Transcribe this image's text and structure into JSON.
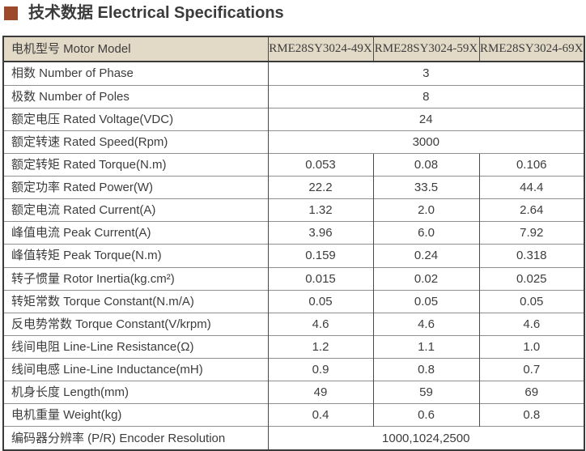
{
  "title": {
    "text": "技术数据 Electrical Specifications"
  },
  "colors": {
    "accent_square": "#9c4a2b",
    "header_bg": "#e3d9c7",
    "text": "#3d3d3d",
    "row_line": "#8f8f8f",
    "column_line": "#4a4a4a",
    "outer_border": "#3a3a3a"
  },
  "table": {
    "header": {
      "label": "电机型号 Motor Model",
      "models": [
        "RME28SY3024-49X",
        "RME28SY3024-59X",
        "RME28SY3024-69X"
      ]
    },
    "rows": [
      {
        "label": "相数 Number of Phase",
        "merged": true,
        "value": "3"
      },
      {
        "label": "极数 Number of Poles",
        "merged": true,
        "value": "8"
      },
      {
        "label": "额定电压 Rated Voltage(VDC)",
        "merged": true,
        "value": "24"
      },
      {
        "label": "额定转速 Rated Speed(Rpm)",
        "merged": true,
        "value": "3000"
      },
      {
        "label": "额定转矩 Rated Torque(N.m)",
        "merged": false,
        "values": [
          "0.053",
          "0.08",
          "0.106"
        ]
      },
      {
        "label": "额定功率 Rated Power(W)",
        "merged": false,
        "values": [
          "22.2",
          "33.5",
          "44.4"
        ]
      },
      {
        "label": "额定电流 Rated Current(A)",
        "merged": false,
        "values": [
          "1.32",
          "2.0",
          "2.64"
        ]
      },
      {
        "label": "峰值电流 Peak Current(A)",
        "merged": false,
        "values": [
          "3.96",
          "6.0",
          "7.92"
        ]
      },
      {
        "label": "峰值转矩 Peak Torque(N.m)",
        "merged": false,
        "values": [
          "0.159",
          "0.24",
          "0.318"
        ]
      },
      {
        "label": "转子惯量 Rotor Inertia(kg.cm²)",
        "merged": false,
        "values": [
          "0.015",
          "0.02",
          "0.025"
        ]
      },
      {
        "label": "转矩常数 Torque Constant(N.m/A)",
        "merged": false,
        "values": [
          "0.05",
          "0.05",
          "0.05"
        ]
      },
      {
        "label": "反电势常数 Torque Constant(V/krpm)",
        "merged": false,
        "values": [
          "4.6",
          "4.6",
          "4.6"
        ]
      },
      {
        "label": "线间电阻 Line-Line Resistance(Ω)",
        "merged": false,
        "values": [
          "1.2",
          "1.1",
          "1.0"
        ]
      },
      {
        "label": "线间电感 Line-Line Inductance(mH)",
        "merged": false,
        "values": [
          "0.9",
          "0.8",
          "0.7"
        ]
      },
      {
        "label": "机身长度 Length(mm)",
        "merged": false,
        "values": [
          "49",
          "59",
          "69"
        ]
      },
      {
        "label": "电机重量 Weight(kg)",
        "merged": false,
        "values": [
          "0.4",
          "0.6",
          "0.8"
        ]
      },
      {
        "label": "编码器分辨率 (P/R) Encoder Resolution",
        "merged": true,
        "value": "1000,1024,2500"
      }
    ]
  }
}
